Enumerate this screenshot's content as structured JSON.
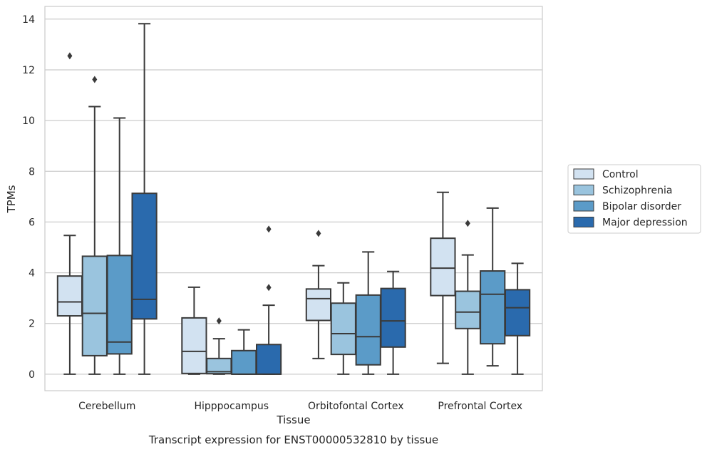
{
  "caption": "Transcript expression for ENST00000532810 by tissue",
  "chart_data": {
    "type": "box",
    "xlabel": "Tissue",
    "ylabel": "TPMs",
    "ylim": [
      -0.65,
      14.5
    ],
    "yticks": [
      0,
      2,
      4,
      6,
      8,
      10,
      12,
      14
    ],
    "grid": "horizontal",
    "legend_position": "right",
    "categories": [
      "Cerebellum",
      "Hipppocampus",
      "Orbitofontal Cortex",
      "Prefrontal Cortex"
    ],
    "series": [
      {
        "name": "Control",
        "color": "#d2e2f1",
        "boxes": [
          {
            "category": "Cerebellum",
            "whisker_low": 0.0,
            "q1": 2.3,
            "median": 2.85,
            "q3": 3.87,
            "whisker_high": 5.47,
            "outliers": [
              12.55
            ]
          },
          {
            "category": "Hipppocampus",
            "whisker_low": 0.0,
            "q1": 0.03,
            "median": 0.9,
            "q3": 2.22,
            "whisker_high": 3.43,
            "outliers": []
          },
          {
            "category": "Orbitofontal Cortex",
            "whisker_low": 0.62,
            "q1": 2.12,
            "median": 2.98,
            "q3": 3.36,
            "whisker_high": 4.28,
            "outliers": [
              5.55
            ]
          },
          {
            "category": "Prefrontal Cortex",
            "whisker_low": 0.43,
            "q1": 3.1,
            "median": 4.18,
            "q3": 5.36,
            "whisker_high": 7.17,
            "outliers": []
          }
        ]
      },
      {
        "name": "Schizophrenia",
        "color": "#9ac4de",
        "boxes": [
          {
            "category": "Cerebellum",
            "whisker_low": 0.0,
            "q1": 0.73,
            "median": 2.4,
            "q3": 4.65,
            "whisker_high": 10.55,
            "outliers": [
              11.62
            ]
          },
          {
            "category": "Hipppocampus",
            "whisker_low": 0.0,
            "q1": 0.02,
            "median": 0.1,
            "q3": 0.62,
            "whisker_high": 1.4,
            "outliers": [
              2.1
            ]
          },
          {
            "category": "Orbitofontal Cortex",
            "whisker_low": 0.0,
            "q1": 0.78,
            "median": 1.6,
            "q3": 2.8,
            "whisker_high": 3.6,
            "outliers": []
          },
          {
            "category": "Prefrontal Cortex",
            "whisker_low": 0.0,
            "q1": 1.8,
            "median": 2.45,
            "q3": 3.27,
            "whisker_high": 4.7,
            "outliers": [
              5.95
            ]
          }
        ]
      },
      {
        "name": "Bipolar disorder",
        "color": "#5b9bc8",
        "boxes": [
          {
            "category": "Cerebellum",
            "whisker_low": 0.0,
            "q1": 0.8,
            "median": 1.27,
            "q3": 4.68,
            "whisker_high": 10.1,
            "outliers": []
          },
          {
            "category": "Hipppocampus",
            "whisker_low": 0.0,
            "q1": 0.0,
            "median": 0.0,
            "q3": 0.93,
            "whisker_high": 1.75,
            "outliers": []
          },
          {
            "category": "Orbitofontal Cortex",
            "whisker_low": 0.0,
            "q1": 0.37,
            "median": 1.48,
            "q3": 3.12,
            "whisker_high": 4.82,
            "outliers": []
          },
          {
            "category": "Prefrontal Cortex",
            "whisker_low": 0.33,
            "q1": 1.2,
            "median": 3.15,
            "q3": 4.07,
            "whisker_high": 6.55,
            "outliers": []
          }
        ]
      },
      {
        "name": "Major depression",
        "color": "#2a6aad",
        "boxes": [
          {
            "category": "Cerebellum",
            "whisker_low": 0.0,
            "q1": 2.18,
            "median": 2.95,
            "q3": 7.13,
            "whisker_high": 13.82,
            "outliers": []
          },
          {
            "category": "Hipppocampus",
            "whisker_low": 0.0,
            "q1": 0.0,
            "median": 0.0,
            "q3": 1.17,
            "whisker_high": 2.72,
            "outliers": [
              3.42,
              5.72
            ]
          },
          {
            "category": "Orbitofontal Cortex",
            "whisker_low": 0.0,
            "q1": 1.07,
            "median": 2.1,
            "q3": 3.38,
            "whisker_high": 4.05,
            "outliers": []
          },
          {
            "category": "Prefrontal Cortex",
            "whisker_low": 0.0,
            "q1": 1.52,
            "median": 2.62,
            "q3": 3.33,
            "whisker_high": 4.37,
            "outliers": []
          }
        ]
      }
    ]
  }
}
